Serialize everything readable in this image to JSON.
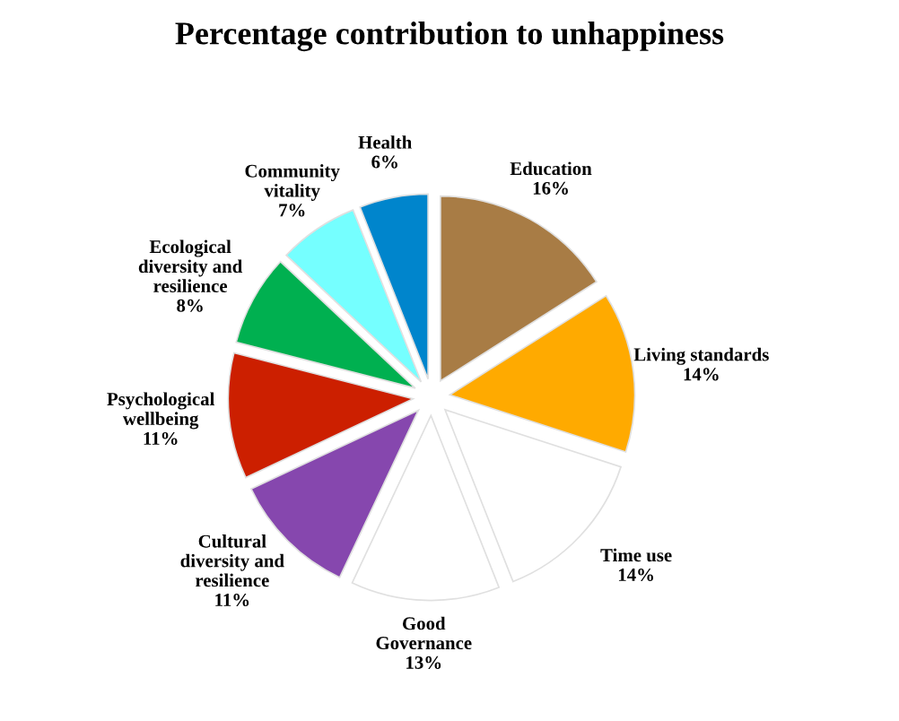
{
  "chart_data": {
    "type": "pie",
    "title": "Percentage contribution to unhappiness",
    "categories": [
      "Education",
      "Living standards",
      "Time use",
      "Good\nGovernance",
      "Cultural\ndiversity and\nresilience",
      "Psychological\nwellbeing",
      "Ecological\ndiversity and\nresilience",
      "Community\nvitality",
      "Health"
    ],
    "values": [
      16,
      14,
      14,
      13,
      11,
      11,
      8,
      7,
      6
    ],
    "value_labels": [
      "16%",
      "14%",
      "14%",
      "13%",
      "11%",
      "11%",
      "8%",
      "7%",
      "6%"
    ],
    "colors": [
      "#a87c45",
      "#ffaa00",
      "#ffffff",
      "#ffffff",
      "#8647ae",
      "#cc1f00",
      "#00b050",
      "#75ffff",
      "#0085cc"
    ],
    "legend": false
  }
}
